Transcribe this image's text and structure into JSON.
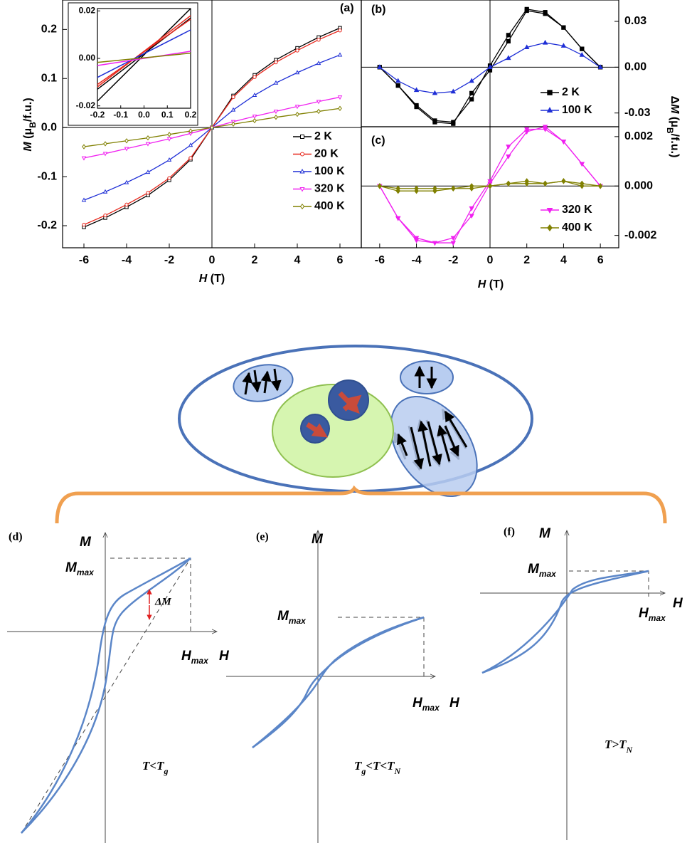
{
  "chart_data": [
    {
      "type": "line",
      "panel": "(a)",
      "xlabel": [
        "H",
        " (T)"
      ],
      "ylabel": [
        "M",
        " (μ",
        "B",
        "/f.u.)"
      ],
      "x": [
        -6,
        -5,
        -4,
        -3,
        -2,
        -1,
        0,
        1,
        2,
        3,
        4,
        5,
        6
      ],
      "xlim": [
        -7,
        7
      ],
      "xticks": [
        -6,
        -4,
        -2,
        0,
        2,
        4,
        6
      ],
      "ylim": [
        -0.245,
        0.26
      ],
      "yticks": [
        0.2,
        0.1,
        {
          "value": 0,
          "label": "0.0"
        },
        -0.1,
        -0.2
      ],
      "markers_filled": false,
      "legend": "lower right",
      "series": [
        {
          "name": "2 K",
          "color": "#000000",
          "marker": "square",
          "values": [
            -0.203,
            -0.184,
            -0.162,
            -0.138,
            -0.107,
            -0.065,
            0,
            0.065,
            0.107,
            0.138,
            0.162,
            0.184,
            0.203
          ]
        },
        {
          "name": "20 K",
          "color": "#e8271c",
          "marker": "circle",
          "values": [
            -0.198,
            -0.179,
            -0.157,
            -0.133,
            -0.103,
            -0.062,
            0,
            0.062,
            0.103,
            0.133,
            0.157,
            0.179,
            0.198
          ]
        },
        {
          "name": "100 K",
          "color": "#1f2fd6",
          "marker": "triangle",
          "values": [
            -0.148,
            -0.131,
            -0.112,
            -0.091,
            -0.066,
            -0.036,
            0,
            0.036,
            0.066,
            0.091,
            0.112,
            0.131,
            0.148
          ]
        },
        {
          "name": "320 K",
          "color": "#f020f0",
          "marker": "triangle-down",
          "values": [
            -0.062,
            -0.053,
            -0.043,
            -0.033,
            -0.023,
            -0.012,
            0,
            0.012,
            0.023,
            0.033,
            0.043,
            0.053,
            0.062
          ]
        },
        {
          "name": "400 K",
          "color": "#808000",
          "marker": "diamond",
          "values": [
            -0.039,
            -0.033,
            -0.027,
            -0.021,
            -0.014,
            -0.007,
            0,
            0.007,
            0.014,
            0.021,
            0.027,
            0.033,
            0.039
          ]
        }
      ]
    },
    {
      "type": "line",
      "x": [
        -0.2,
        0.2
      ],
      "xlim": [
        -0.2,
        0.2
      ],
      "xticks": [
        -0.2,
        -0.1,
        {
          "value": 0,
          "label": "0.0"
        },
        0.1,
        0.2
      ],
      "ylim": [
        -0.021,
        0.021
      ],
      "yticks": [
        0.02,
        {
          "value": 0,
          "label": "0.00"
        },
        -0.02
      ],
      "series": [
        {
          "color": "#000000",
          "values": [
            -0.018,
            0.021
          ]
        },
        {
          "color": "#000000",
          "values": [
            -0.013,
            0.017
          ]
        },
        {
          "color": "#e8271c",
          "values": [
            -0.012,
            0.018
          ]
        },
        {
          "color": "#e8271c",
          "values": [
            -0.011,
            0.0165
          ]
        },
        {
          "color": "#1f2fd6",
          "values": [
            -0.008,
            0.012
          ]
        },
        {
          "color": "#f020f0",
          "values": [
            -0.003,
            0.003
          ]
        },
        {
          "color": "#808000",
          "values": [
            -0.0017,
            0.0022
          ]
        }
      ]
    },
    {
      "type": "line",
      "panel": "(b)",
      "x": [
        -6,
        -5,
        -4,
        -3,
        -2,
        -1,
        0,
        1,
        2,
        3,
        4,
        5,
        6
      ],
      "xlim": [
        -7,
        7
      ],
      "ylim": [
        -0.039,
        0.044
      ],
      "yticks": [
        0.03,
        {
          "value": 0,
          "label": "0.00"
        },
        -0.03
      ],
      "markers_filled": true,
      "legend": "lower right",
      "series": [
        {
          "name": "2 K",
          "color": "#000000",
          "marker": "square",
          "values": [
            0,
            -0.012,
            -0.025,
            -0.035,
            -0.036,
            -0.021,
            0.001,
            0.021,
            0.038,
            0.036,
            0.026,
            0.012,
            0
          ],
          "values_back": [
            0,
            -0.012,
            -0.026,
            -0.036,
            -0.037,
            -0.017,
            -0.002,
            0.017,
            0.037,
            0.035,
            0.026,
            0.012,
            0
          ]
        },
        {
          "name": "100 K",
          "color": "#1f2fd6",
          "marker": "triangle",
          "values": [
            0,
            -0.009,
            -0.015,
            -0.017,
            -0.016,
            -0.009,
            0,
            0.006,
            0.013,
            0.016,
            0.014,
            0.008,
            0
          ]
        }
      ]
    },
    {
      "type": "line",
      "panel": "(c)",
      "xlabel": [
        "H",
        " (T)"
      ],
      "ylabel": [
        "Δ",
        "M",
        " (μ",
        "B",
        "/f.u.)"
      ],
      "x": [
        -6,
        -5,
        -4,
        -3,
        -2,
        -1,
        0,
        1,
        2,
        3,
        4,
        5,
        6
      ],
      "xlim": [
        -7,
        7
      ],
      "xticks": [
        -6,
        -4,
        -2,
        0,
        2,
        4,
        6
      ],
      "ylim": [
        -0.0025,
        0.0024
      ],
      "yticks": [
        0.002,
        {
          "value": 0,
          "label": "0.000"
        },
        -0.002
      ],
      "markers_filled": true,
      "legend": "lower right",
      "series": [
        {
          "name": "320 K",
          "color": "#f020f0",
          "marker": "triangle-down",
          "values": [
            0,
            -0.0013,
            -0.0021,
            -0.0023,
            -0.0021,
            -0.0012,
            0.0001,
            0.0012,
            0.0022,
            0.0024,
            0.0018,
            0.0009,
            0
          ],
          "values_back": [
            0,
            -0.0013,
            -0.0022,
            -0.0023,
            -0.0023,
            -0.0009,
            0.0002,
            0.0016,
            0.0023,
            0.0023,
            0.0018,
            0.0009,
            0
          ]
        },
        {
          "name": "400 K",
          "color": "#808000",
          "marker": "diamond",
          "values": [
            0,
            -0.0002,
            -0.0002,
            -0.0002,
            -0.0001,
            -0.0001,
            0,
            0.0001,
            0.0001,
            0.0001,
            0.0002,
            0,
            0
          ],
          "values_back": [
            0,
            -0.0001,
            -0.0001,
            -0.0001,
            -0.0001,
            0,
            0,
            0.0001,
            0.0002,
            0.0001,
            0.0002,
            0.0001,
            0
          ]
        }
      ]
    }
  ],
  "diagram": {
    "panels": [
      {
        "label": "(d)",
        "y_axis": "M",
        "mmax": [
          "M",
          "max"
        ],
        "delta": "ΔM",
        "hmax": [
          "H",
          "max"
        ],
        "x_axis": "H",
        "condition": [
          "T<T",
          "g"
        ]
      },
      {
        "label": "(e)",
        "y_axis": "M",
        "mmax": [
          "M",
          "max"
        ],
        "hmax": [
          "H",
          "max"
        ],
        "x_axis": "H",
        "condition": [
          "T",
          "g",
          "<T<T",
          "N"
        ]
      },
      {
        "label": "(f)",
        "y_axis": "M",
        "mmax": [
          "M",
          "max"
        ],
        "hmax": [
          "H",
          "max"
        ],
        "x_axis": "H",
        "condition": [
          "T>T",
          "N"
        ]
      }
    ]
  }
}
